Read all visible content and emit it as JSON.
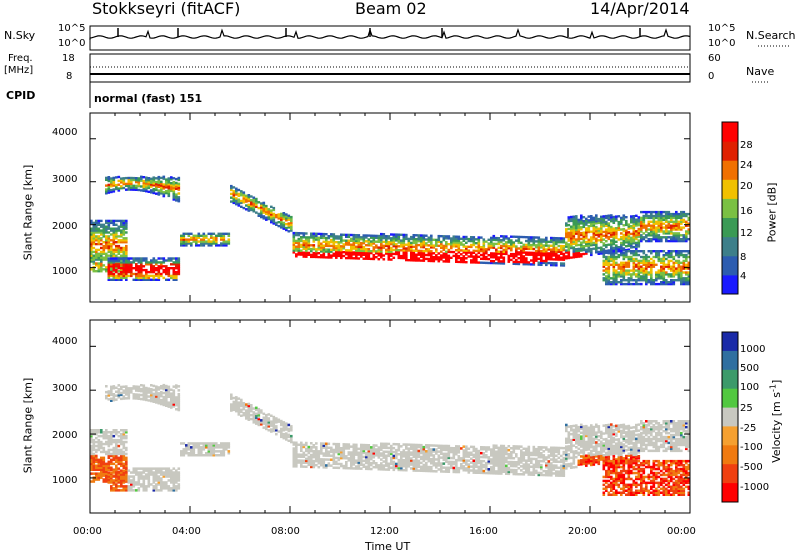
{
  "header": {
    "station": "Stokkseyri (fitACF)",
    "beam": "Beam 02",
    "date": "14/Apr/2014"
  },
  "panels": {
    "nsky": {
      "label": "N.Sky",
      "ticks_left": [
        "10^5",
        "10^0"
      ],
      "ticks_right": [
        "10^5",
        "10^0"
      ],
      "right_label": "N.Search"
    },
    "freq": {
      "label_line1": "Freq.",
      "label_line2": "[MHz]",
      "ticks_left": [
        "18",
        "8"
      ],
      "ticks_right": [
        "60",
        "0"
      ],
      "right_label": "Nave"
    },
    "cpid": {
      "label": "CPID",
      "value": "normal (fast) 151"
    }
  },
  "chart_data": [
    {
      "type": "heatmap",
      "name": "power",
      "ylabel": "Slant Range [km]",
      "xlabel": "",
      "yticks": [
        "4000",
        "3000",
        "2000",
        "1000"
      ],
      "ylim": [
        200,
        4600
      ],
      "xlim": [
        0,
        24
      ],
      "colorbar": {
        "label": "Power [dB]",
        "ticks": [
          "28",
          "24",
          "20",
          "16",
          "12",
          "8",
          "4"
        ],
        "colors": [
          "#1a1aff",
          "#2c5cb0",
          "#3d7f8a",
          "#3a9a55",
          "#7ac043",
          "#f0c000",
          "#f07000",
          "#e02000",
          "#ff0000"
        ]
      }
    },
    {
      "type": "heatmap",
      "name": "velocity",
      "ylabel": "Slant Range [km]",
      "xlabel": "Time UT",
      "yticks": [
        "4000",
        "3000",
        "2000",
        "1000"
      ],
      "ylim": [
        200,
        4600
      ],
      "xlim": [
        0,
        24
      ],
      "xticks": [
        "00:00",
        "04:00",
        "08:00",
        "12:00",
        "16:00",
        "20:00",
        "00:00"
      ],
      "colorbar": {
        "label": "Velocity [m s",
        "label_sup": "-1",
        "label_end": "]",
        "ticks": [
          "1000",
          "500",
          "100",
          "25",
          "-25",
          "-100",
          "-500",
          "-1000"
        ],
        "colors": [
          "#1a2aa8",
          "#2f6fa0",
          "#3c9a6a",
          "#52c840",
          "#c8c8c0",
          "#f5a030",
          "#f07a10",
          "#f04010",
          "#ff0000"
        ]
      }
    }
  ]
}
